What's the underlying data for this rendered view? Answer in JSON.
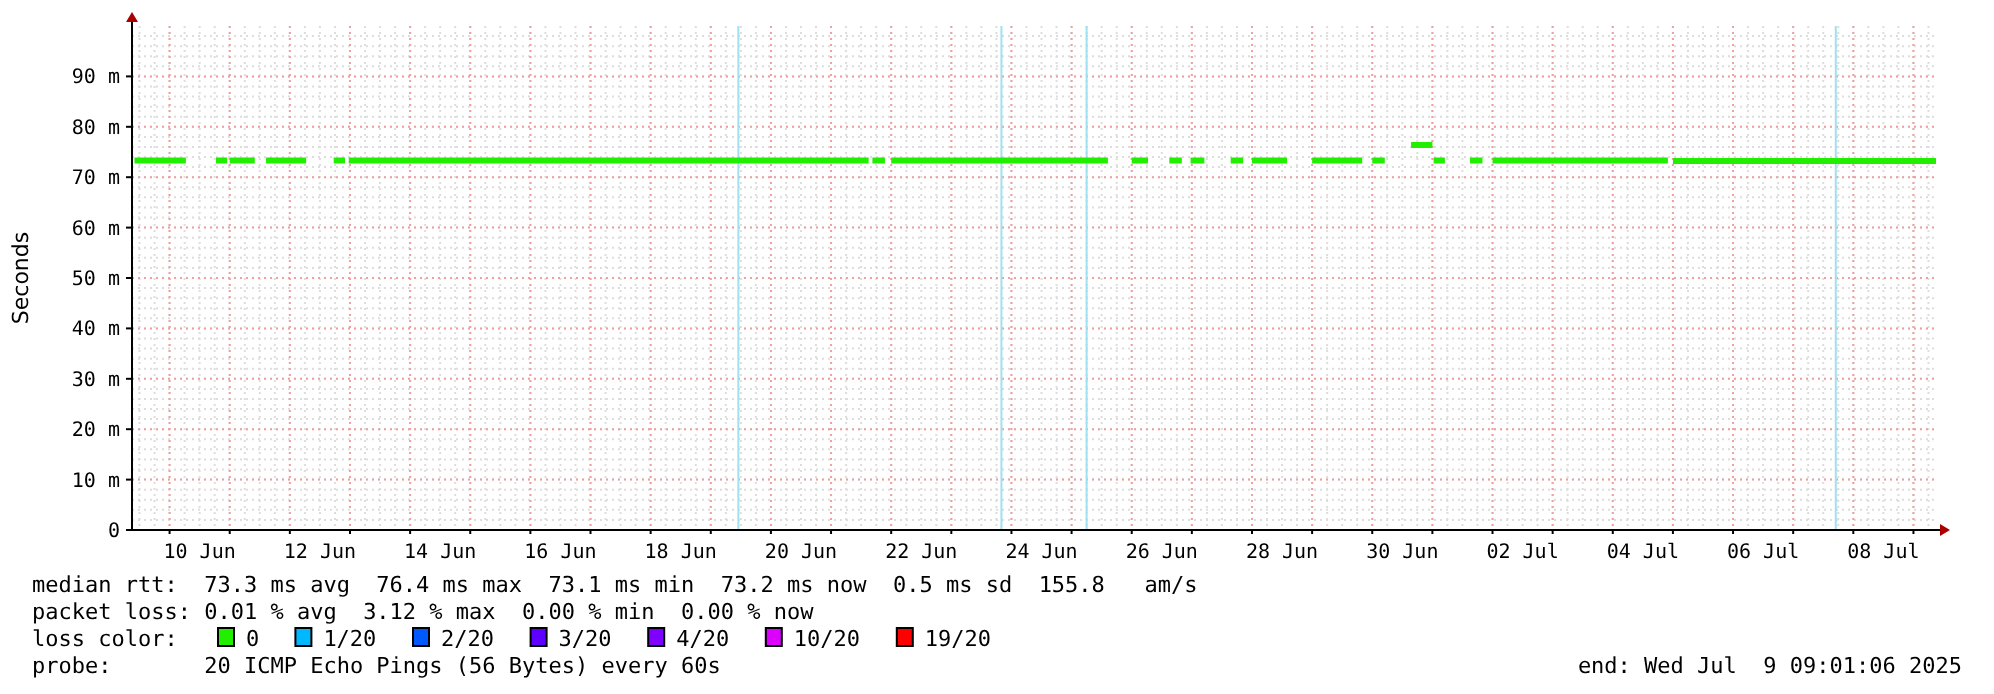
{
  "chart_data": {
    "type": "line",
    "ylabel": "Seconds",
    "legend_title": "loss color:",
    "legend": "bottom",
    "grid": true,
    "xlim": [
      "2025-06-09T09:00",
      "2025-07-09T09:00"
    ],
    "xticks": [
      {
        "value": "2025-06-10T12:00",
        "label": "10 Jun"
      },
      {
        "value": "2025-06-12T12:00",
        "label": "12 Jun"
      },
      {
        "value": "2025-06-14T12:00",
        "label": "14 Jun"
      },
      {
        "value": "2025-06-16T12:00",
        "label": "16 Jun"
      },
      {
        "value": "2025-06-18T12:00",
        "label": "18 Jun"
      },
      {
        "value": "2025-06-20T12:00",
        "label": "20 Jun"
      },
      {
        "value": "2025-06-22T12:00",
        "label": "22 Jun"
      },
      {
        "value": "2025-06-24T12:00",
        "label": "24 Jun"
      },
      {
        "value": "2025-06-26T12:00",
        "label": "26 Jun"
      },
      {
        "value": "2025-06-28T12:00",
        "label": "28 Jun"
      },
      {
        "value": "2025-06-30T12:00",
        "label": "30 Jun"
      },
      {
        "value": "2025-07-02T12:00",
        "label": "02 Jul"
      },
      {
        "value": "2025-07-04T12:00",
        "label": "04 Jul"
      },
      {
        "value": "2025-07-06T12:00",
        "label": "06 Jul"
      },
      {
        "value": "2025-07-08T12:00",
        "label": "08 Jul"
      }
    ],
    "ylim": [
      0,
      100
    ],
    "yticks": [
      0,
      {
        "value": 10,
        "label": "10 m"
      },
      {
        "value": 20,
        "label": "20 m"
      },
      {
        "value": 30,
        "label": "30 m"
      },
      {
        "value": 40,
        "label": "40 m"
      },
      {
        "value": 50,
        "label": "50 m"
      },
      {
        "value": 60,
        "label": "60 m"
      },
      {
        "value": 70,
        "label": "70 m"
      },
      {
        "value": 80,
        "label": "80 m"
      },
      {
        "value": 90,
        "label": "90 m"
      }
    ],
    "series": [
      {
        "name": "0",
        "color": "#22ee00",
        "x": [
          "2025-06-09T10:00",
          "2025-06-10T06:30",
          "2025-06-10T13:00",
          "2025-06-10T18:30",
          "2025-06-10T23:00",
          "2025-06-10T23:30",
          "2025-06-11T00:00",
          "2025-06-11T10:00",
          "2025-06-11T12:00",
          "2025-06-11T14:30",
          "2025-06-12T06:30",
          "2025-06-12T12:00",
          "2025-06-12T17:30",
          "2025-06-12T22:00",
          "2025-06-12T22:45",
          "2025-06-12T23:30",
          "2025-06-21T15:00",
          "2025-06-21T15:45",
          "2025-06-21T16:30",
          "2025-06-21T21:30",
          "2025-06-21T22:45",
          "2025-06-22T00:00",
          "2025-06-25T14:30",
          "2025-06-25T19:00",
          "2025-06-26T00:00",
          "2025-06-26T06:30",
          "2025-06-26T11:00",
          "2025-06-26T15:00",
          "2025-06-26T20:00",
          "2025-06-26T22:00",
          "2025-06-26T23:30",
          "2025-06-27T05:00",
          "2025-06-27T11:00",
          "2025-06-27T15:30",
          "2025-06-27T20:30",
          "2025-06-27T22:15",
          "2025-06-28T00:00",
          "2025-06-28T14:00",
          "2025-06-28T19:00",
          "2025-06-29T00:00",
          "2025-06-29T20:00",
          "2025-06-29T22:00",
          "2025-06-30T00:00",
          "2025-06-30T05:00",
          "2025-06-30T10:00",
          "2025-06-30T15:30",
          "2025-07-01T00:00",
          "2025-07-01T00:15",
          "2025-07-01T00:30",
          "2025-07-01T05:00",
          "2025-07-01T10:00",
          "2025-07-01T15:00",
          "2025-07-01T20:00",
          "2025-07-01T22:00",
          "2025-07-02T00:00",
          "2025-07-04T22:00",
          "2025-07-04T23:00",
          "2025-07-05T00:00",
          "2025-07-09T09:00"
        ],
        "values": [
          73.3,
          73.3,
          null,
          73.3,
          73.3,
          null,
          73.3,
          73.3,
          null,
          73.3,
          73.3,
          null,
          73.3,
          73.3,
          null,
          73.3,
          73.3,
          null,
          73.3,
          73.3,
          null,
          73.3,
          73.3,
          null,
          73.3,
          73.3,
          null,
          73.3,
          73.3,
          null,
          73.3,
          73.3,
          null,
          73.3,
          73.3,
          null,
          73.3,
          73.3,
          null,
          73.3,
          73.3,
          null,
          73.3,
          73.3,
          null,
          76.4,
          76.4,
          null,
          73.3,
          73.3,
          null,
          73.3,
          73.3,
          null,
          73.3,
          73.3,
          null,
          73.2,
          73.2
        ]
      },
      {
        "name": "1/20",
        "color": "#00b8ff"
      },
      {
        "name": "2/20",
        "color": "#0059ff"
      },
      {
        "name": "3/20",
        "color": "#5e00ff"
      },
      {
        "name": "4/20",
        "color": "#7e00ff"
      },
      {
        "name": "10/20",
        "color": "#dd00ff"
      },
      {
        "name": "19/20",
        "color": "#ff0000"
      }
    ],
    "ref_lines": [
      {
        "axis": "x",
        "value": "2025-06-19T11:00",
        "color": "#a0e0f0"
      },
      {
        "axis": "x",
        "value": "2025-06-23T20:00",
        "color": "#a0e0f0"
      },
      {
        "axis": "x",
        "value": "2025-06-25T06:00",
        "color": "#a0e0f0"
      },
      {
        "axis": "x",
        "value": "2025-07-07T17:00",
        "color": "#a0e0f0"
      }
    ],
    "annotations": [
      "median rtt:  73.3 ms avg  76.4 ms max  73.1 ms min  73.2 ms now  0.5 ms sd  155.8   am/s",
      "packet loss: 0.01 % avg  3.12 % max  0.00 % min  0.00 % now",
      "probe:       20 ICMP Echo Pings (56 Bytes) every 60s",
      "end: Wed Jul  9 09:01:06 2025"
    ]
  }
}
